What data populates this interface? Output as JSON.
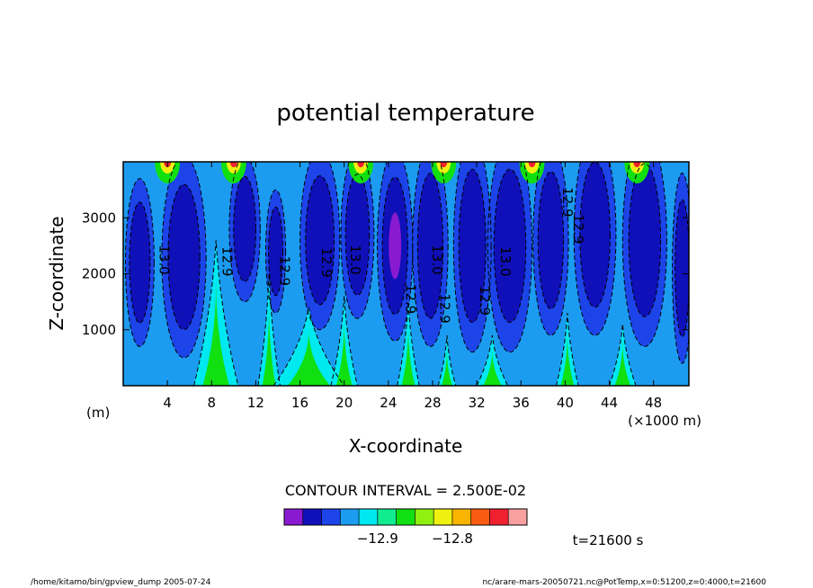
{
  "chart_data": {
    "type": "heatmap",
    "subtype": "filled-contour",
    "title": "potential temperature",
    "xlabel": "X-coordinate",
    "ylabel": "Z-coordinate",
    "x_unit_left": "(m)",
    "x_unit_right": "(×1000 m)",
    "xlim": [
      0,
      51.2
    ],
    "ylim": [
      0,
      4000
    ],
    "x_ticks": [
      4,
      8,
      12,
      16,
      20,
      24,
      28,
      32,
      36,
      40,
      44,
      48
    ],
    "y_ticks": [
      1000,
      2000,
      3000
    ],
    "contour_interval_text": "CONTOUR INTERVAL = 2.500E-02",
    "time_text": "t=21600 s",
    "colorbar": {
      "colors": [
        "#8a1ad0",
        "#1010b8",
        "#1c44e8",
        "#1c9cf0",
        "#00e8f0",
        "#10ec90",
        "#10e010",
        "#90f010",
        "#f0f010",
        "#f8b400",
        "#f85c10",
        "#f02030",
        "#f8a0a0"
      ],
      "tick_labels": [
        {
          "label": "−12.9",
          "index": 5
        },
        {
          "label": "−12.8",
          "index": 9
        }
      ]
    },
    "contour_labels": [
      {
        "text": "13.0",
        "x": 3.3,
        "z": 2250
      },
      {
        "text": "12.9",
        "x": 9.0,
        "z": 2220
      },
      {
        "text": "12.9",
        "x": 14.2,
        "z": 2050
      },
      {
        "text": "12.9",
        "x": 18.0,
        "z": 2200
      },
      {
        "text": "13.0",
        "x": 20.6,
        "z": 2250
      },
      {
        "text": "12.9",
        "x": 25.6,
        "z": 1550
      },
      {
        "text": "13.0",
        "x": 28.0,
        "z": 2250
      },
      {
        "text": "12.9",
        "x": 28.7,
        "z": 1380
      },
      {
        "text": "12.9",
        "x": 32.3,
        "z": 1520
      },
      {
        "text": "13.0",
        "x": 34.2,
        "z": 2220
      },
      {
        "text": "12.9",
        "x": 39.8,
        "z": 3280
      },
      {
        "text": "12.9",
        "x": 40.8,
        "z": 2800
      }
    ]
  },
  "footer": {
    "left": "/home/kitamo/bin/gpview_dump  2005-07-24",
    "right": "nc/arare-mars-20050721.nc@PotTemp,x=0:51200,z=0:4000,t=21600"
  }
}
